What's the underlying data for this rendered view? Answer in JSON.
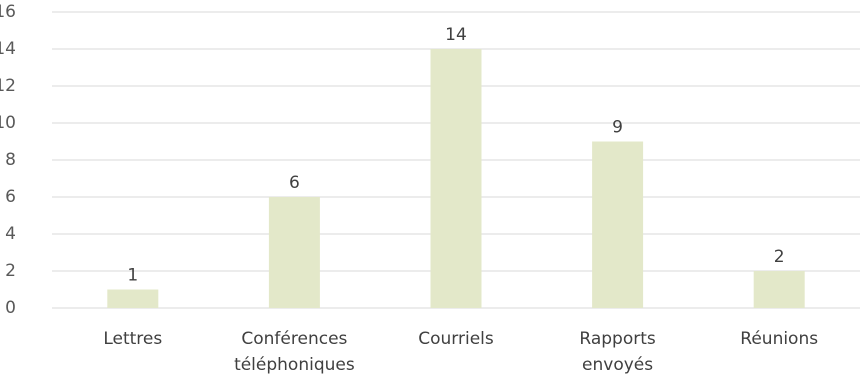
{
  "chart_data": {
    "type": "bar",
    "title": "",
    "xlabel": "",
    "ylabel": "",
    "categories": [
      [
        "Lettres"
      ],
      [
        "Conférences",
        "téléphoniques"
      ],
      [
        "Courriels"
      ],
      [
        "Rapports",
        "envoyés"
      ],
      [
        "Réunions"
      ]
    ],
    "values": [
      1,
      6,
      14,
      9,
      2
    ],
    "data_labels": [
      "1",
      "6",
      "14",
      "9",
      "2"
    ],
    "y_ticks": [
      "0",
      "2",
      "4",
      "6",
      "8",
      "10",
      "12",
      "14",
      "16"
    ],
    "ylim": [
      0,
      16
    ],
    "grid": true,
    "legend": "none",
    "colors": {
      "bar": "#e3e8c9",
      "grid": "#d9d9d9",
      "axis": "#d9d9d9"
    }
  }
}
